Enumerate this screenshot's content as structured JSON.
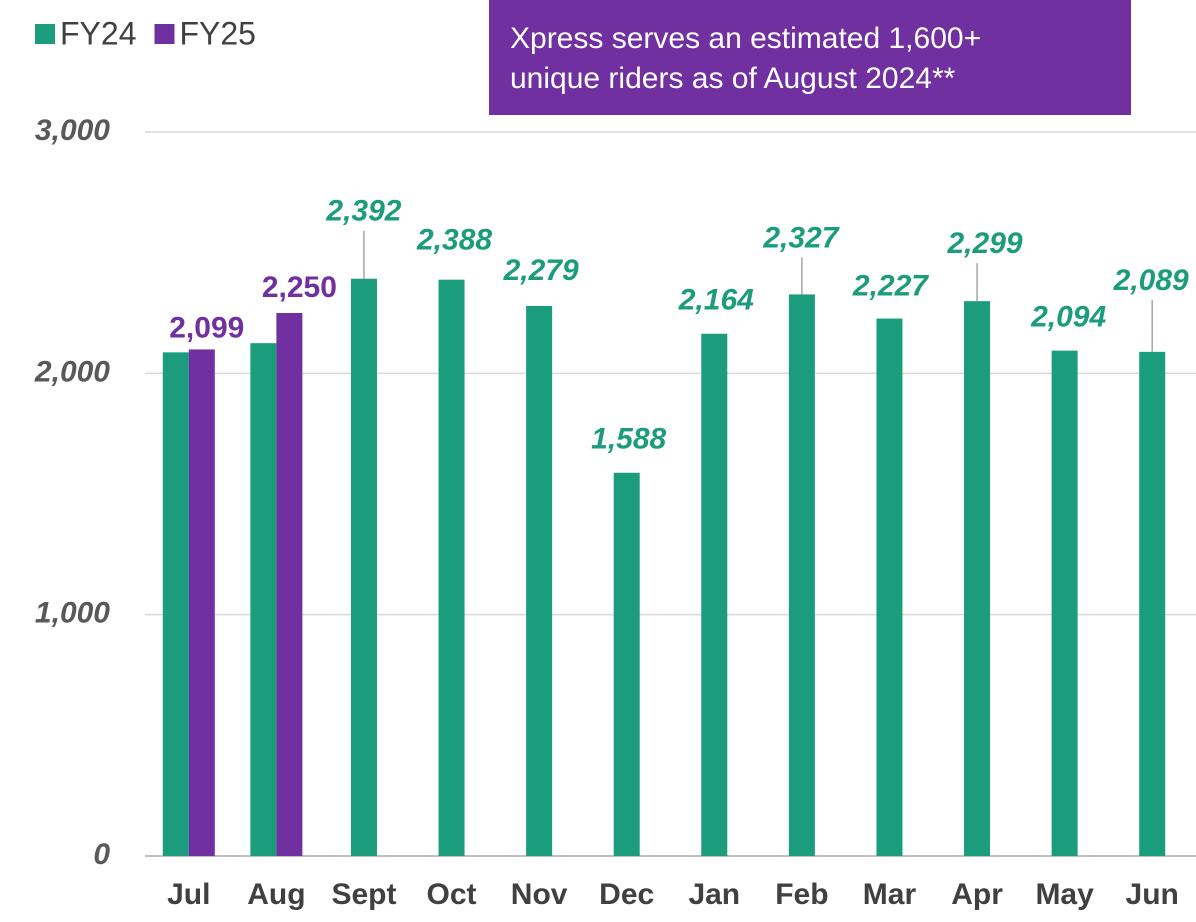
{
  "chart_data": {
    "type": "bar",
    "categories": [
      "Jul",
      "Aug",
      "Sept",
      "Oct",
      "Nov",
      "Dec",
      "Jan",
      "Feb",
      "Mar",
      "Apr",
      "May",
      "Jun"
    ],
    "series": [
      {
        "name": "FY24",
        "color": "#1b9c7c",
        "values": [
          2087,
          2125,
          2392,
          2388,
          2279,
          1588,
          2164,
          2327,
          2227,
          2299,
          2094,
          2089
        ],
        "value_labels": [
          null,
          null,
          "2,392",
          "2,388",
          "2,279",
          "1,588",
          "2,164",
          "2,327",
          "2,227",
          "2,299",
          "2,094",
          "2,089"
        ]
      },
      {
        "name": "FY25",
        "color": "#7030a0",
        "values": [
          2099,
          2250,
          null,
          null,
          null,
          null,
          null,
          null,
          null,
          null,
          null,
          null
        ],
        "value_labels": [
          "2,099",
          "2,250",
          null,
          null,
          null,
          null,
          null,
          null,
          null,
          null,
          null,
          null
        ]
      }
    ],
    "annotation": [
      "Xpress serves an estimated 1,600+",
      "unique riders as of August 2024**"
    ],
    "ylim": [
      0,
      3000
    ],
    "yticks": [
      0,
      {
        "value": 1000,
        "label": "1,000"
      },
      {
        "value": 2000,
        "label": "2,000"
      },
      {
        "value": 3000,
        "label": "3,000"
      }
    ],
    "grid": true,
    "legend": "top-left"
  }
}
